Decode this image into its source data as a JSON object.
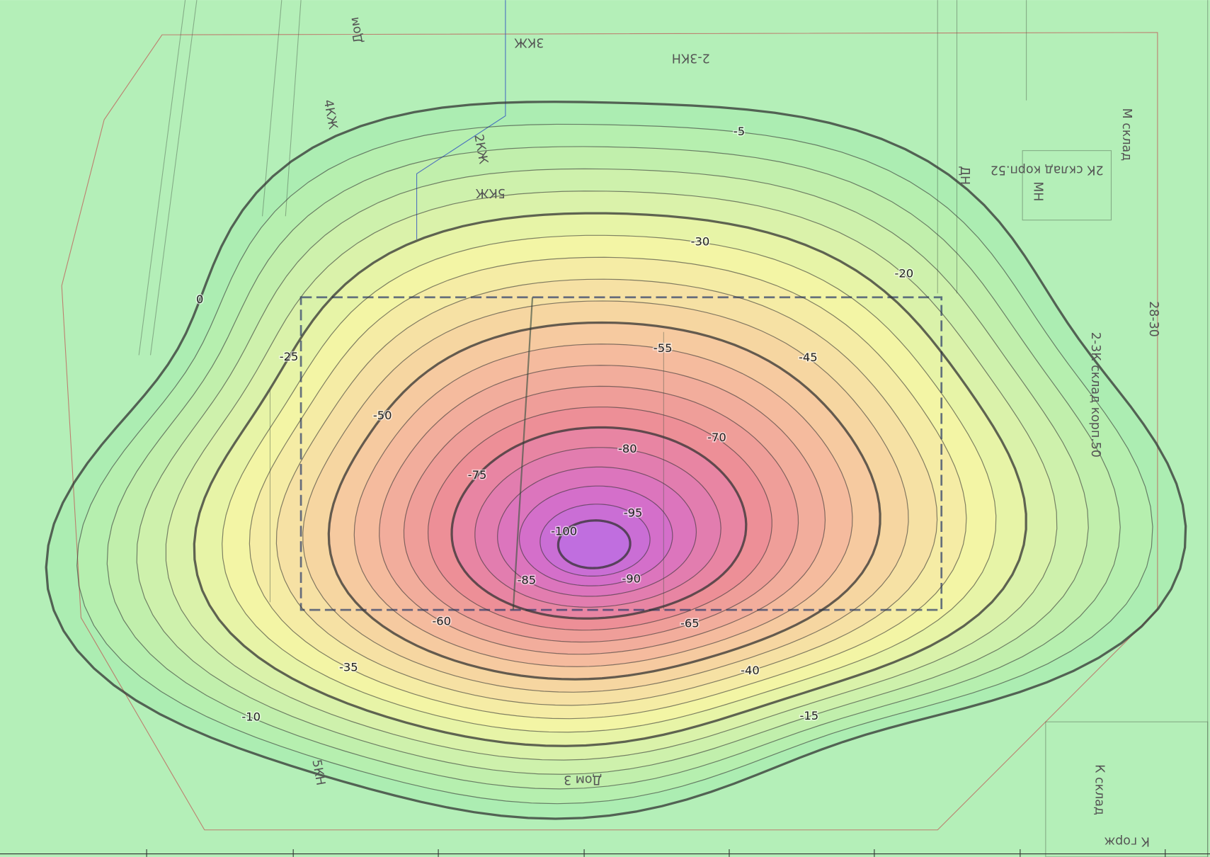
{
  "contour_levels": [
    0,
    -5,
    -10,
    -15,
    -20,
    -25,
    -30,
    -35,
    -40,
    -45,
    -50,
    -55,
    -60,
    -65,
    -70,
    -75,
    -80,
    -85,
    -90,
    -95,
    -100
  ],
  "site_labels": [
    "Дом",
    "3КЖ",
    "2-3КН",
    "4КЖ",
    "2КЖ",
    "5КЖ",
    "ДН",
    "МН",
    "2К склад корп.52",
    "28-30",
    "2-3К склад корп.50",
    "М склад",
    "Дом 3",
    "5КН",
    "К склад",
    "К горж"
  ]
}
